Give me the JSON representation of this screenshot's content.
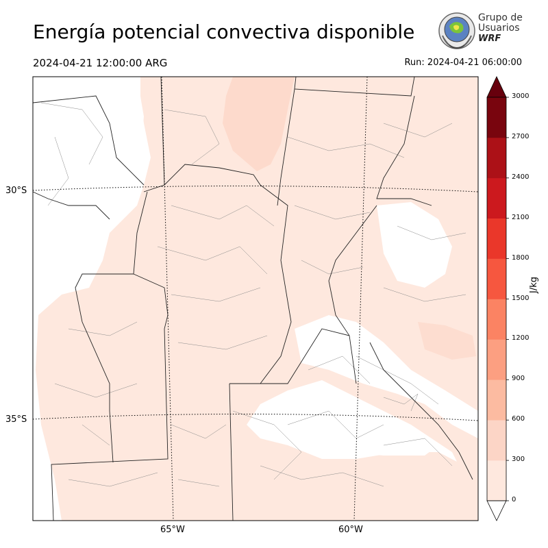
{
  "header": {
    "title": "Energía potencial convectiva disponible",
    "valid_time": "2024-04-21 12:00:00 ARG",
    "run_time": "Run: 2024-04-21 06:00:00"
  },
  "logo": {
    "line1": "Grupo de",
    "line2": "Usuarios",
    "line3": "WRF"
  },
  "map": {
    "variable": "CAPE",
    "lat_labels": [
      "30°S",
      "35°S"
    ],
    "lon_labels": [
      "65°W",
      "60°W"
    ]
  },
  "colorbar": {
    "units": "J/kg",
    "ticks": [
      "0",
      "300",
      "600",
      "900",
      "1200",
      "1500",
      "1800",
      "2100",
      "2400",
      "2700",
      "3000"
    ],
    "colors": [
      "#fee8de",
      "#fcd5c6",
      "#fcbba1",
      "#fc9f81",
      "#fb8363",
      "#f6573f",
      "#ea372a",
      "#cc191e",
      "#ac1117",
      "#79050e"
    ],
    "extend_low_color": "#ffffff",
    "extend_high_color": "#67000d"
  }
}
